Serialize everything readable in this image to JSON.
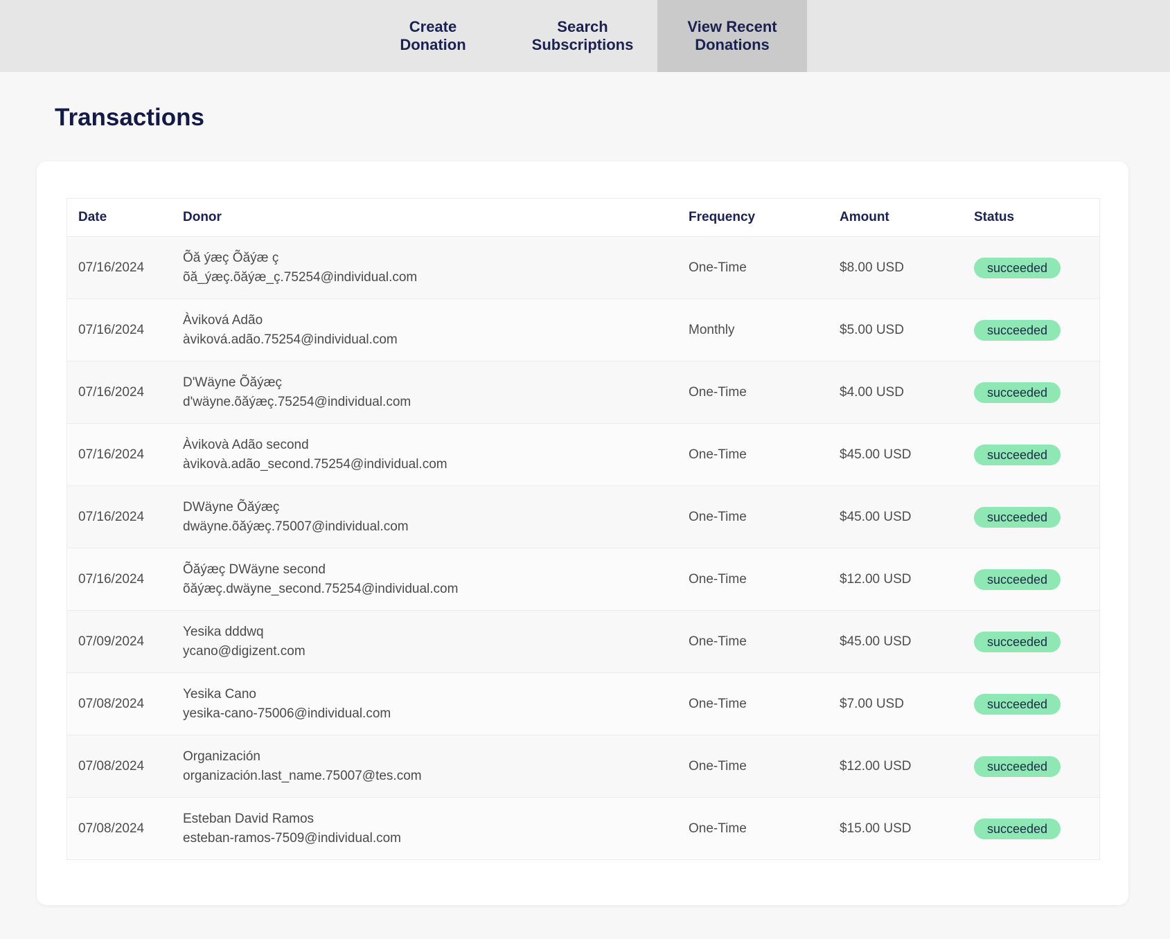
{
  "nav": {
    "tabs": [
      {
        "label": "Create\nDonation",
        "active": false
      },
      {
        "label": "Search\nSubscriptions",
        "active": false
      },
      {
        "label": "View Recent\nDonations",
        "active": true
      }
    ]
  },
  "page": {
    "title": "Transactions"
  },
  "table": {
    "headers": {
      "date": "Date",
      "donor": "Donor",
      "frequency": "Frequency",
      "amount": "Amount",
      "status": "Status"
    },
    "rows": [
      {
        "date": "07/16/2024",
        "donor_name": "Õă ýæç Õăýæ ç",
        "donor_email": "õă_ýæç.õăýæ_ç.75254@individual.com",
        "frequency": "One-Time",
        "amount": "$8.00 USD",
        "status": "succeeded"
      },
      {
        "date": "07/16/2024",
        "donor_name": "Àviková Adão",
        "donor_email": "àviková.adão.75254@individual.com",
        "frequency": "Monthly",
        "amount": "$5.00 USD",
        "status": "succeeded"
      },
      {
        "date": "07/16/2024",
        "donor_name": "D'Wäyne Õăýæç",
        "donor_email": "d'wäyne.õăýæç.75254@individual.com",
        "frequency": "One-Time",
        "amount": "$4.00 USD",
        "status": "succeeded"
      },
      {
        "date": "07/16/2024",
        "donor_name": "Àvikovà Adão second",
        "donor_email": "àvikovà.adão_second.75254@individual.com",
        "frequency": "One-Time",
        "amount": "$45.00 USD",
        "status": "succeeded"
      },
      {
        "date": "07/16/2024",
        "donor_name": "DWäyne Õăýæç",
        "donor_email": "dwäyne.õăýæç.75007@individual.com",
        "frequency": "One-Time",
        "amount": "$45.00 USD",
        "status": "succeeded"
      },
      {
        "date": "07/16/2024",
        "donor_name": "Õăýæç DWäyne second",
        "donor_email": "õăýæç.dwäyne_second.75254@individual.com",
        "frequency": "One-Time",
        "amount": "$12.00 USD",
        "status": "succeeded"
      },
      {
        "date": "07/09/2024",
        "donor_name": "Yesika dddwq",
        "donor_email": "ycano@digizent.com",
        "frequency": "One-Time",
        "amount": "$45.00 USD",
        "status": "succeeded"
      },
      {
        "date": "07/08/2024",
        "donor_name": "Yesika Cano",
        "donor_email": "yesika-cano-75006@individual.com",
        "frequency": "One-Time",
        "amount": "$7.00 USD",
        "status": "succeeded"
      },
      {
        "date": "07/08/2024",
        "donor_name": "Organización",
        "donor_email": "organización.last_name.75007@tes.com",
        "frequency": "One-Time",
        "amount": "$12.00 USD",
        "status": "succeeded"
      },
      {
        "date": "07/08/2024",
        "donor_name": "Esteban David Ramos",
        "donor_email": "esteban-ramos-7509@individual.com",
        "frequency": "One-Time",
        "amount": "$15.00 USD",
        "status": "succeeded"
      }
    ]
  },
  "colors": {
    "nav_background": "#e6e6e6",
    "nav_active": "#cacaca",
    "text_primary": "#1b2150",
    "badge_success": "#8fe8b3",
    "page_background": "#f7f7f7"
  }
}
